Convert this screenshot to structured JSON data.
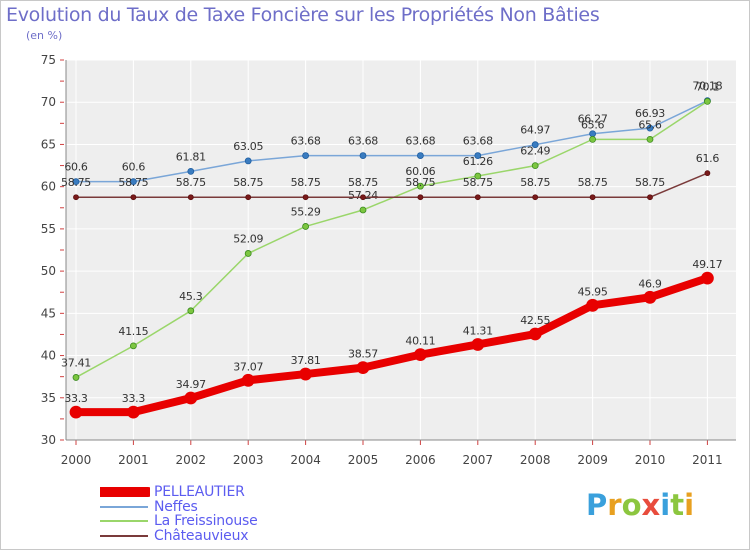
{
  "chart_data": {
    "type": "line",
    "title": "Evolution du Taux de Taxe Foncière sur les Propriétés Non Bâties",
    "subtitle": "(en %)",
    "categories": [
      "2000",
      "2001",
      "2002",
      "2003",
      "2004",
      "2005",
      "2006",
      "2007",
      "2008",
      "2009",
      "2010",
      "2011"
    ],
    "ylim": [
      30,
      75
    ],
    "yticks": [
      30,
      35,
      40,
      45,
      50,
      55,
      60,
      65,
      70,
      75
    ],
    "grid": true,
    "legend_position": "bottom-left",
    "series": [
      {
        "name": "PELLEAUTIER",
        "color": "#e80000",
        "values": [
          33.3,
          33.3,
          34.97,
          37.07,
          37.81,
          38.57,
          40.11,
          41.31,
          42.55,
          45.95,
          46.9,
          49.17
        ],
        "labels": [
          "33.3",
          "33.3",
          "34.97",
          "37.07",
          "37.81",
          "38.57",
          "40.11",
          "41.31",
          "42.55",
          "45.95",
          "46.9",
          "49.17"
        ]
      },
      {
        "name": "Neffes",
        "color": "#7aa6d8",
        "values": [
          60.6,
          60.6,
          61.81,
          63.05,
          63.68,
          63.68,
          63.68,
          63.68,
          64.97,
          66.27,
          66.93,
          70.18
        ],
        "labels": [
          "60.6",
          "60.6",
          "61.81",
          "63.05",
          "63.68",
          "63.68",
          "63.68",
          "63.68",
          "64.97",
          "66.27",
          "66.93",
          "70.18"
        ]
      },
      {
        "name": "La Freissinouse",
        "color": "#9ad66a",
        "values": [
          37.41,
          41.15,
          45.3,
          52.09,
          55.29,
          57.24,
          60.06,
          61.26,
          62.49,
          65.6,
          65.6,
          70.1
        ],
        "labels": [
          "37.41",
          "41.15",
          "45.3",
          "52.09",
          "55.29",
          "57.24",
          "60.06",
          "61.26",
          "62.49",
          "65.6",
          "65.6",
          "70.1"
        ]
      },
      {
        "name": "Châteauvieux",
        "color": "#7a3a3a",
        "values": [
          58.75,
          58.75,
          58.75,
          58.75,
          58.75,
          58.75,
          58.75,
          58.75,
          58.75,
          58.75,
          58.75,
          61.6
        ],
        "labels": [
          "58.75",
          "58.75",
          "58.75",
          "58.75",
          "58.75",
          "58.75",
          "58.75",
          "58.75",
          "58.75",
          "58.75",
          "58.75",
          "61.6"
        ]
      }
    ]
  },
  "logo": {
    "text": "Proxiti"
  }
}
